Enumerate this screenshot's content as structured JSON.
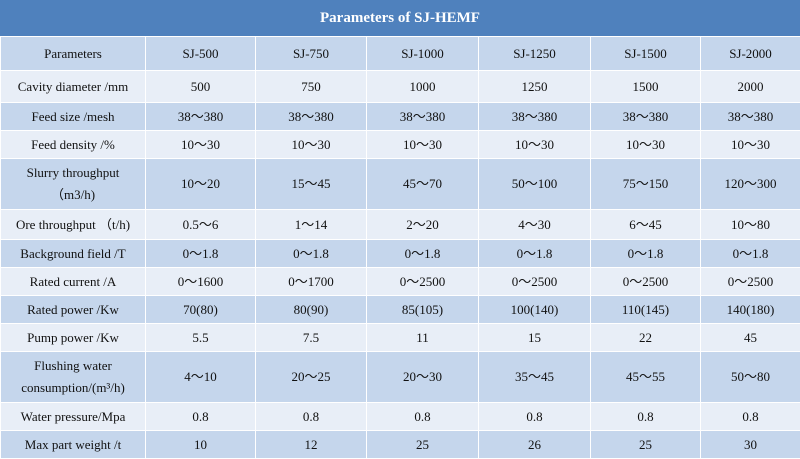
{
  "title": "Parameters of SJ-HEMF",
  "table": {
    "header": [
      "Parameters",
      "SJ-500",
      "SJ-750",
      "SJ-1000",
      "SJ-1250",
      "SJ-1500",
      "SJ-2000"
    ],
    "rows": [
      [
        "Cavity diameter /mm",
        "500",
        "750",
        "1000",
        "1250",
        "1500",
        "2000"
      ],
      [
        "Feed size /mesh",
        "38～380",
        "38～380",
        "38～380",
        "38～380",
        "38～380",
        "38～380"
      ],
      [
        "Feed density /%",
        "10～30",
        "10～30",
        "10～30",
        "10～30",
        "10～30",
        "10～30"
      ],
      [
        "Slurry throughput （m3/h)",
        "10～20",
        "15～45",
        "45～70",
        "50～100",
        "75～150",
        "120～300"
      ],
      [
        "Ore throughput （t/h)",
        "0.5～6",
        "1～14",
        "2～20",
        "4～30",
        "6～45",
        "10～80"
      ],
      [
        "Background field /T",
        "0～1.8",
        "0～1.8",
        "0～1.8",
        "0～1.8",
        "0～1.8",
        "0～1.8"
      ],
      [
        "Rated current /A",
        "0～1600",
        "0～1700",
        "0～2500",
        "0～2500",
        "0～2500",
        "0～2500"
      ],
      [
        "Rated power /Kw",
        "70(80)",
        "80(90)",
        "85(105)",
        "100(140)",
        "110(145)",
        "140(180)"
      ],
      [
        "Pump power /Kw",
        "5.5",
        "7.5",
        "11",
        "15",
        "22",
        "45"
      ],
      [
        "Flushing water consumption/(m³/h)",
        "4～10",
        "20～25",
        "20～30",
        "35～45",
        "45～55",
        "50～80"
      ],
      [
        "Water pressure/Mpa",
        "0.8",
        "0.8",
        "0.8",
        "0.8",
        "0.8",
        "0.8"
      ],
      [
        "Max part weight /t",
        "10",
        "12",
        "25",
        "26",
        "25",
        "30"
      ]
    ]
  }
}
